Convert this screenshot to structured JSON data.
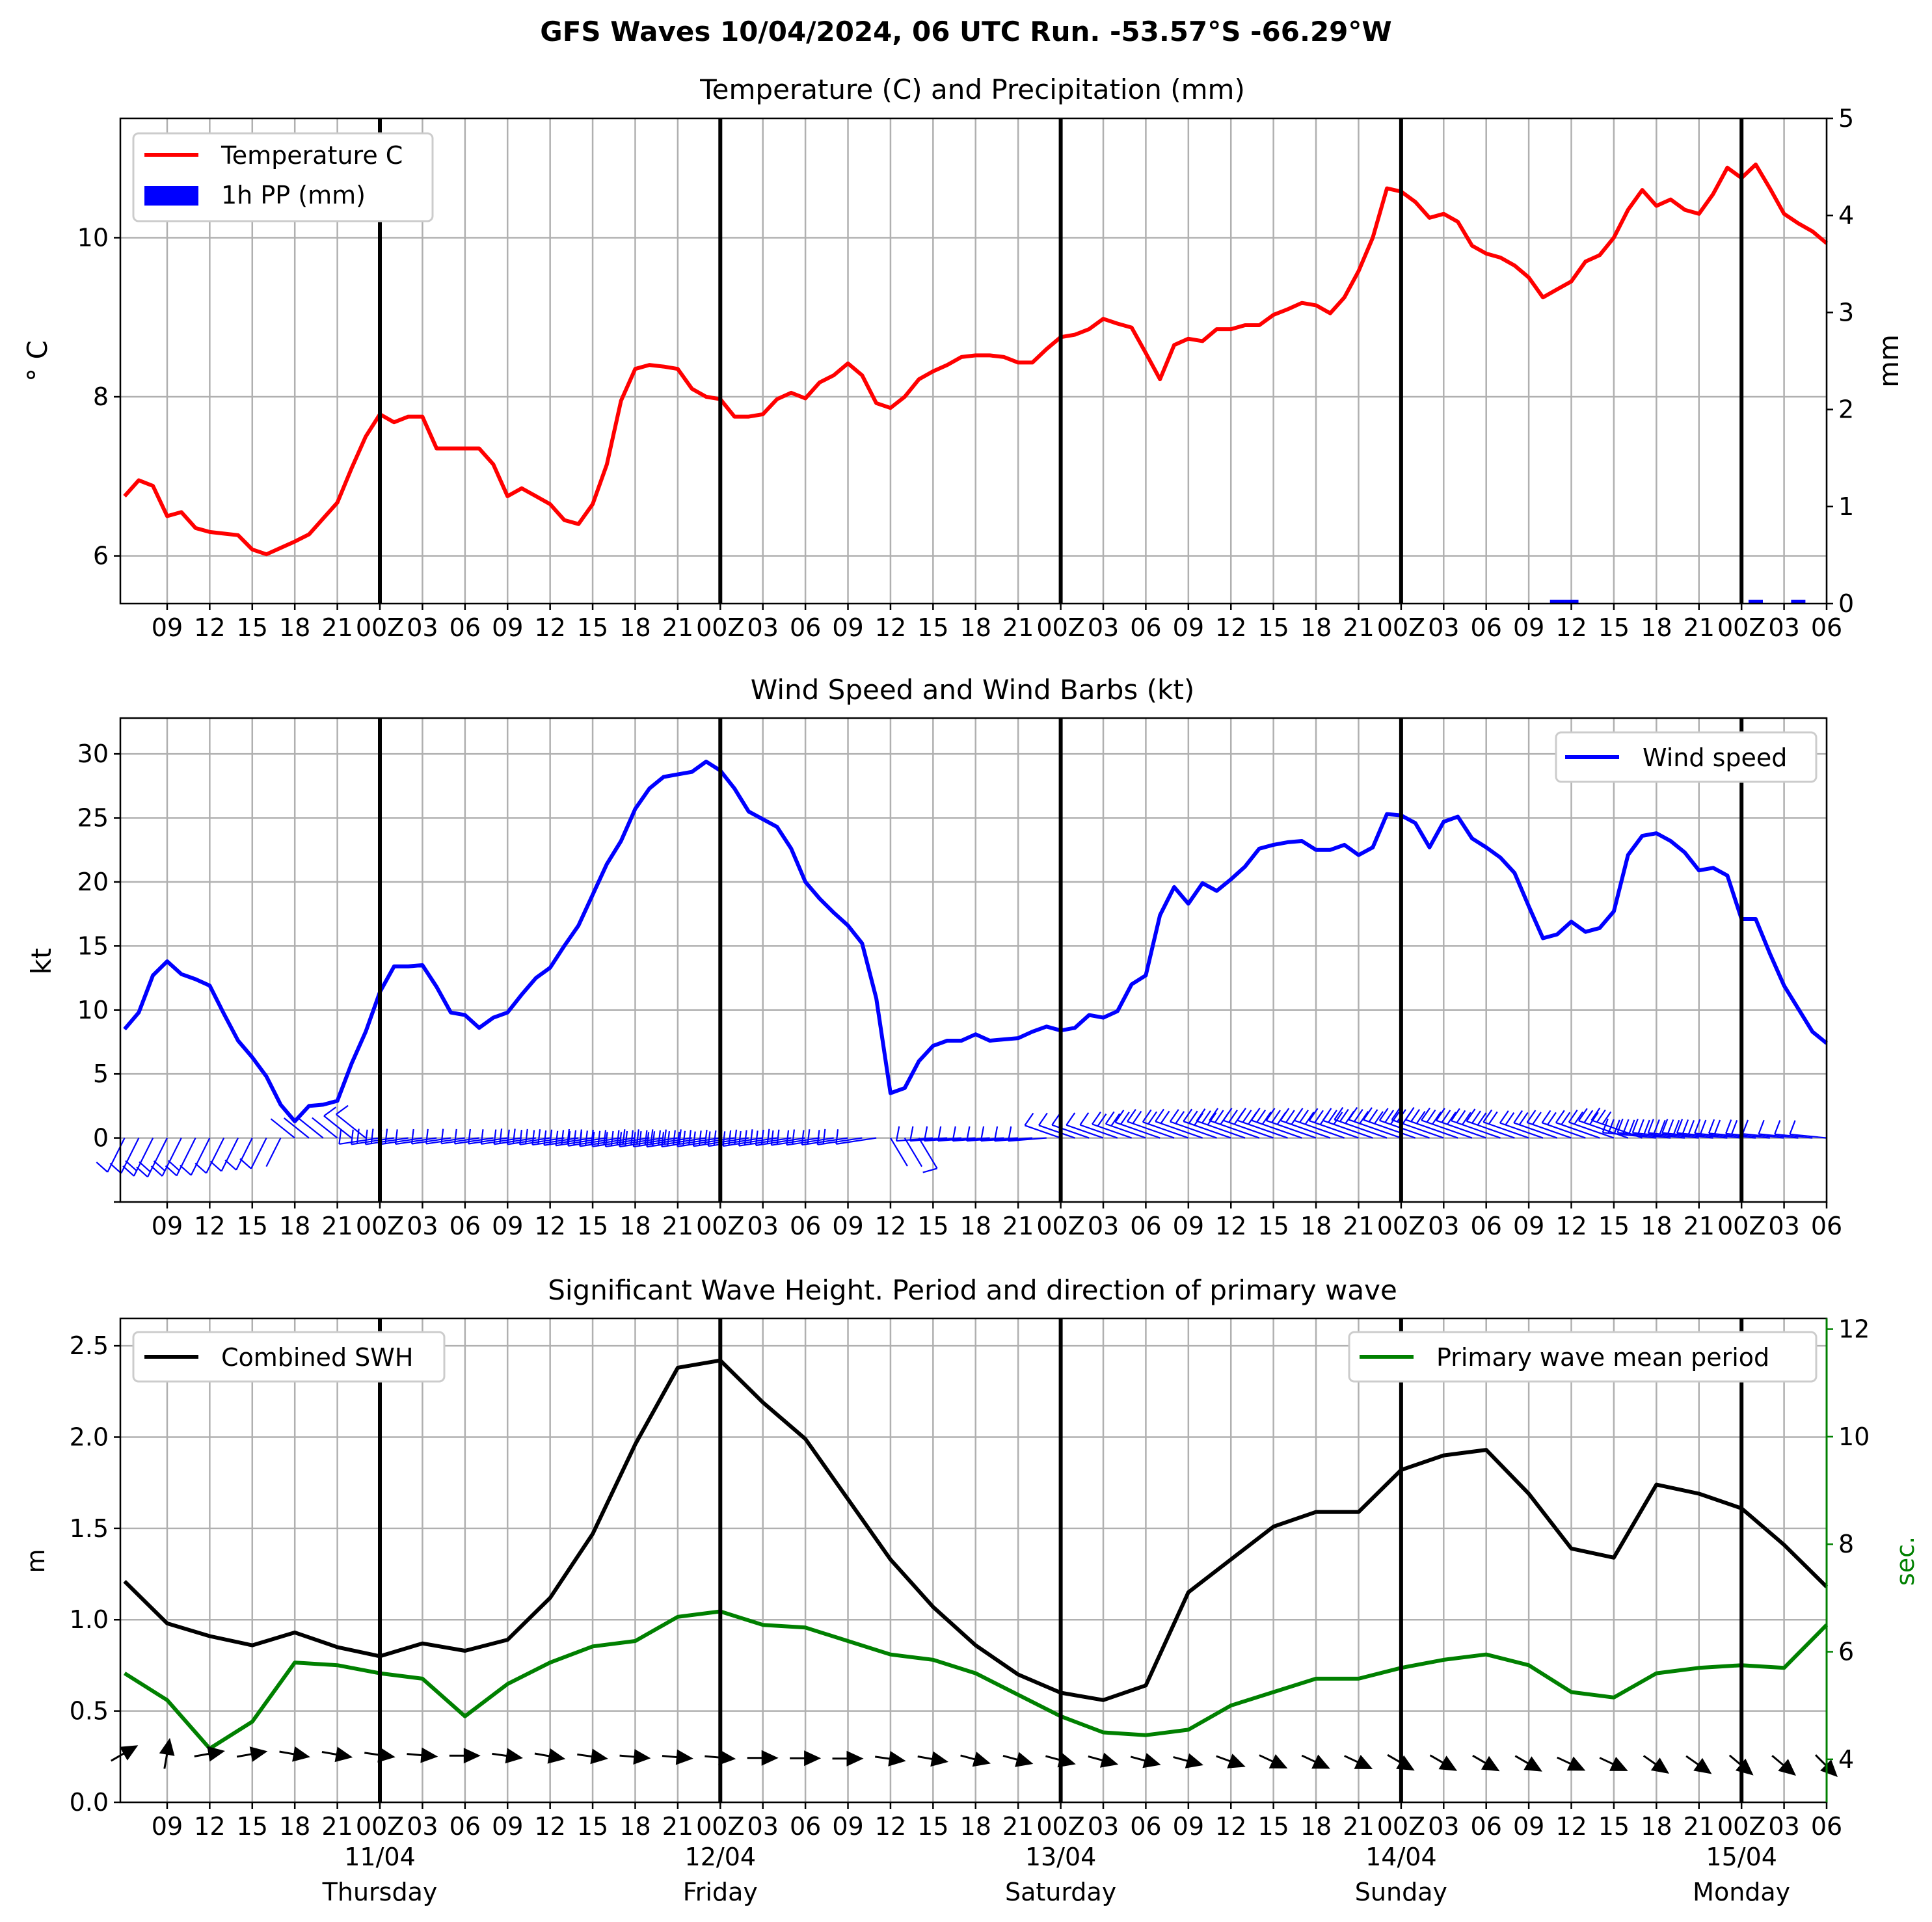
{
  "title": "GFS Waves 10/04/2024, 06 UTC Run. -53.57°S -66.29°W",
  "colors": {
    "temperature": "#ff0000",
    "precipitation": "#0000ff",
    "wind": "#0000ff",
    "swh": "#000000",
    "period": "#008000",
    "grid": "#b0b0b0"
  },
  "x_tick_labels": [
    "09",
    "12",
    "15",
    "18",
    "21",
    "00Z",
    "03",
    "06",
    "09",
    "12",
    "15",
    "18",
    "21",
    "00Z",
    "03",
    "06",
    "09",
    "12",
    "15",
    "18",
    "21",
    "00Z",
    "03",
    "06",
    "09",
    "12",
    "15",
    "18",
    "21",
    "00Z",
    "03",
    "06",
    "09",
    "12",
    "15",
    "18",
    "21",
    "00Z",
    "03",
    "06"
  ],
  "day_labels": [
    {
      "date": "11/04",
      "day": "Thursday"
    },
    {
      "date": "12/04",
      "day": "Friday"
    },
    {
      "date": "13/04",
      "day": "Saturday"
    },
    {
      "date": "14/04",
      "day": "Sunday"
    },
    {
      "date": "15/04",
      "day": "Monday"
    }
  ],
  "chart_data": [
    {
      "type": "line",
      "title": "Temperature (C) and Precipitation (mm)",
      "x_unit": "hours since 10/04/2024 06 UTC",
      "ylabel": "° C",
      "ylabel_right": "mm",
      "ylim": [
        5.4,
        11.5
      ],
      "ylim_right": [
        0,
        5
      ],
      "yticks": [
        6,
        8,
        10
      ],
      "yticks_right": [
        0,
        1,
        2,
        3,
        4,
        5
      ],
      "grid": true,
      "legend_position": "upper-left",
      "series": [
        {
          "name": "Temperature C",
          "x": [
            0,
            1,
            2,
            3,
            4,
            5,
            6,
            7,
            8,
            9,
            10,
            11,
            12,
            13,
            14,
            15,
            16,
            17,
            18,
            19,
            20,
            21,
            22,
            23,
            24,
            25,
            26,
            27,
            28,
            29,
            30,
            31,
            32,
            33,
            34,
            35,
            36,
            37,
            38,
            39,
            40,
            41,
            42,
            43,
            44,
            45,
            46,
            47,
            48,
            49,
            50,
            51,
            52,
            53,
            54,
            55,
            56,
            57,
            58,
            59,
            60,
            61,
            62,
            63,
            64,
            65,
            66,
            67,
            68,
            69,
            70,
            71,
            72,
            73,
            74,
            75,
            76,
            77,
            78,
            79,
            80,
            81,
            82,
            83,
            84,
            85,
            86,
            87,
            88,
            89,
            90,
            91,
            92,
            93,
            94,
            95,
            96,
            97,
            98,
            99,
            100,
            101,
            102,
            103,
            104,
            105,
            106,
            107,
            108,
            109,
            110,
            111,
            112,
            113,
            114,
            115,
            116,
            117,
            118,
            119,
            120
          ],
          "y": [
            6.75,
            6.95,
            6.88,
            6.5,
            6.55,
            6.35,
            6.3,
            6.28,
            6.26,
            6.08,
            6.02,
            6.1,
            6.18,
            6.27,
            6.47,
            6.67,
            7.1,
            7.5,
            7.78,
            7.68,
            7.75,
            7.75,
            7.35,
            7.35,
            7.35,
            7.35,
            7.15,
            6.75,
            6.85,
            6.75,
            6.65,
            6.45,
            6.4,
            6.65,
            7.15,
            7.95,
            8.35,
            8.4,
            8.38,
            8.35,
            8.1,
            8.0,
            7.97,
            7.75,
            7.75,
            7.78,
            7.97,
            8.05,
            7.98,
            8.18,
            8.27,
            8.42,
            8.27,
            7.92,
            7.86,
            8.0,
            8.22,
            8.32,
            8.4,
            8.5,
            8.52,
            8.52,
            8.5,
            8.43,
            8.43,
            8.6,
            8.75,
            8.78,
            8.85,
            8.98,
            8.92,
            8.87,
            8.55,
            8.22,
            8.65,
            8.73,
            8.7,
            8.85,
            8.85,
            8.9,
            8.9,
            9.03,
            9.1,
            9.18,
            9.15,
            9.05,
            9.25,
            9.58,
            10.0,
            10.62,
            10.58,
            10.45,
            10.25,
            10.3,
            10.2,
            9.9,
            9.8,
            9.75,
            9.65,
            9.5,
            9.25,
            9.35,
            9.45,
            9.7,
            9.78,
            10.0,
            10.35,
            10.6,
            10.4,
            10.48,
            10.35,
            10.3,
            10.55,
            10.88,
            10.75,
            10.92,
            10.62,
            10.3,
            10.18,
            10.08,
            9.93
          ]
        },
        {
          "name": "1h PP (mm)",
          "type": "bar",
          "x": [
            101,
            102,
            115,
            118
          ],
          "y": [
            0.04,
            0.04,
            0.04,
            0.04
          ]
        }
      ]
    },
    {
      "type": "line",
      "title": "Wind Speed and Wind Barbs (kt)",
      "x_unit": "hours since 10/04/2024 06 UTC",
      "ylabel": "kt",
      "ylim": [
        -5,
        32.8
      ],
      "yticks": [
        0,
        5,
        10,
        15,
        20,
        25,
        30
      ],
      "grid": true,
      "legend_position": "upper-right",
      "series": [
        {
          "name": "Wind speed",
          "x": [
            0,
            1,
            2,
            3,
            4,
            5,
            6,
            7,
            8,
            9,
            10,
            11,
            12,
            13,
            14,
            15,
            16,
            17,
            18,
            19,
            20,
            21,
            22,
            23,
            24,
            25,
            26,
            27,
            28,
            29,
            30,
            31,
            32,
            33,
            34,
            35,
            36,
            37,
            38,
            39,
            40,
            41,
            42,
            43,
            44,
            45,
            46,
            47,
            48,
            49,
            50,
            51,
            52,
            53,
            54,
            55,
            56,
            57,
            58,
            59,
            60,
            61,
            62,
            63,
            64,
            65,
            66,
            67,
            68,
            69,
            70,
            71,
            72,
            73,
            74,
            75,
            76,
            77,
            78,
            79,
            80,
            81,
            82,
            83,
            84,
            85,
            86,
            87,
            88,
            89,
            90,
            91,
            92,
            93,
            94,
            95,
            96,
            97,
            98,
            99,
            100,
            101,
            102,
            103,
            104,
            105,
            106,
            107,
            108,
            109,
            110,
            111,
            112,
            113,
            114,
            115,
            116,
            117,
            118,
            119,
            120
          ],
          "y": [
            8.5,
            9.8,
            12.7,
            13.8,
            12.8,
            12.4,
            11.9,
            9.7,
            7.6,
            6.3,
            4.8,
            2.6,
            1.3,
            2.5,
            2.6,
            2.9,
            5.8,
            8.3,
            11.4,
            13.4,
            13.4,
            13.5,
            11.8,
            9.8,
            9.6,
            8.6,
            9.4,
            9.8,
            11.2,
            12.5,
            13.3,
            15.0,
            16.6,
            19.0,
            21.4,
            23.2,
            25.7,
            27.3,
            28.2,
            28.4,
            28.6,
            29.4,
            28.7,
            27.3,
            25.5,
            24.9,
            24.3,
            22.6,
            20.0,
            18.7,
            17.6,
            16.6,
            15.2,
            10.9,
            3.5,
            3.9,
            6.0,
            7.2,
            7.6,
            7.6,
            8.1,
            7.6,
            7.7,
            7.8,
            8.3,
            8.7,
            8.4,
            8.6,
            9.6,
            9.4,
            9.9,
            12.0,
            12.7,
            17.4,
            19.6,
            18.3,
            19.9,
            19.3,
            20.2,
            21.2,
            22.6,
            22.9,
            23.1,
            23.2,
            22.5,
            22.5,
            22.9,
            22.1,
            22.7,
            25.3,
            25.2,
            24.6,
            22.7,
            24.7,
            25.1,
            23.4,
            22.7,
            21.9,
            20.7,
            18.1,
            15.6,
            15.9,
            16.9,
            16.1,
            16.4,
            17.7,
            22.1,
            23.6,
            23.8,
            23.2,
            22.3,
            20.9,
            21.1,
            20.5,
            17.1,
            17.1,
            14.4,
            11.9,
            10.1,
            8.3,
            7.4
          ]
        }
      ]
    },
    {
      "type": "line",
      "title": "Significant Wave Height. Period and direction of primary wave",
      "x_unit": "hours since 10/04/2024 06 UTC",
      "ylabel": "m",
      "ylabel_right": "sec.",
      "ylim": [
        0,
        2.65
      ],
      "ylim_right": [
        3.2,
        12.2
      ],
      "yticks": [
        0.0,
        0.5,
        1.0,
        1.5,
        2.0,
        2.5
      ],
      "yticks_right": [
        4,
        6,
        8,
        10,
        12
      ],
      "grid": true,
      "legend_positions": [
        "upper-left",
        "upper-right"
      ],
      "series": [
        {
          "name": "Combined SWH",
          "x": [
            0,
            3,
            6,
            9,
            12,
            15,
            18,
            21,
            24,
            27,
            30,
            33,
            36,
            39,
            42,
            45,
            48,
            51,
            54,
            57,
            60,
            63,
            66,
            69,
            72,
            75,
            78,
            81,
            84,
            87,
            90,
            93,
            96,
            99,
            102,
            105,
            108,
            111,
            114,
            117,
            120
          ],
          "y": [
            1.21,
            0.98,
            0.91,
            0.86,
            0.93,
            0.85,
            0.8,
            0.87,
            0.83,
            0.89,
            1.12,
            1.47,
            1.96,
            2.38,
            2.42,
            2.19,
            1.99,
            1.66,
            1.33,
            1.07,
            0.86,
            0.7,
            0.6,
            0.56,
            0.64,
            1.15,
            1.33,
            1.51,
            1.59,
            1.59,
            1.82,
            1.9,
            1.93,
            1.69,
            1.39,
            1.34,
            1.74,
            1.69,
            1.61,
            1.41,
            1.18
          ]
        },
        {
          "name": "Primary wave mean period",
          "axis": "right",
          "x": [
            0,
            3,
            6,
            9,
            12,
            15,
            18,
            21,
            24,
            27,
            30,
            33,
            36,
            39,
            42,
            45,
            48,
            51,
            54,
            57,
            60,
            63,
            66,
            69,
            72,
            75,
            78,
            81,
            84,
            87,
            90,
            93,
            96,
            99,
            102,
            105,
            108,
            111,
            114,
            117,
            120
          ],
          "y": [
            5.6,
            5.1,
            4.2,
            4.7,
            5.8,
            5.75,
            5.6,
            5.5,
            4.8,
            5.4,
            5.8,
            6.1,
            6.2,
            6.65,
            6.75,
            6.5,
            6.45,
            6.2,
            5.95,
            5.85,
            5.6,
            5.2,
            4.8,
            4.5,
            4.45,
            4.55,
            5.0,
            5.25,
            5.5,
            5.5,
            5.7,
            5.85,
            5.95,
            5.75,
            5.25,
            5.15,
            5.6,
            5.7,
            5.75,
            5.7,
            6.5
          ]
        },
        {
          "name": "Primary wave direction",
          "type": "arrows",
          "x": [
            0,
            3,
            6,
            9,
            12,
            15,
            18,
            21,
            24,
            27,
            30,
            33,
            36,
            39,
            42,
            45,
            48,
            51,
            54,
            57,
            60,
            63,
            66,
            69,
            72,
            75,
            78,
            81,
            84,
            87,
            90,
            93,
            96,
            99,
            102,
            105,
            108,
            111,
            114,
            117,
            120
          ],
          "angle_deg": [
            -30,
            -80,
            -10,
            -10,
            10,
            10,
            8,
            5,
            0,
            8,
            10,
            8,
            5,
            5,
            5,
            0,
            0,
            0,
            8,
            10,
            15,
            15,
            15,
            15,
            15,
            15,
            20,
            25,
            25,
            25,
            30,
            30,
            30,
            30,
            25,
            25,
            35,
            35,
            40,
            40,
            45
          ]
        }
      ]
    }
  ]
}
